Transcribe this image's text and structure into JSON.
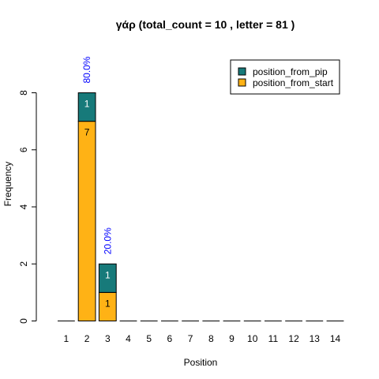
{
  "chart_data": {
    "type": "bar",
    "stacked": true,
    "title": "γάρ  (total_count =  10 , letter = 81 )",
    "xlabel": "Position",
    "ylabel": "Frequency",
    "categories": [
      "1",
      "2",
      "3",
      "4",
      "5",
      "6",
      "7",
      "8",
      "9",
      "10",
      "11",
      "12",
      "13",
      "14"
    ],
    "ylim": [
      0,
      8
    ],
    "yticks": [
      "0",
      "2",
      "4",
      "6",
      "8"
    ],
    "series": [
      {
        "name": "position_from_start",
        "color": "#FFB215",
        "values": [
          0,
          7,
          1,
          0,
          0,
          0,
          0,
          0,
          0,
          0,
          0,
          0,
          0,
          0
        ],
        "labels": [
          "",
          "7",
          "1",
          "",
          "",
          "",
          "",
          "",
          "",
          "",
          "",
          "",
          "",
          ""
        ],
        "label_color": "#000000"
      },
      {
        "name": "position_from_pip",
        "color": "#177A7A",
        "values": [
          0,
          1,
          1,
          0,
          0,
          0,
          0,
          0,
          0,
          0,
          0,
          0,
          0,
          0
        ],
        "labels": [
          "",
          "1",
          "1",
          "",
          "",
          "",
          "",
          "",
          "",
          "",
          "",
          "",
          "",
          ""
        ],
        "label_color": "#ffffff"
      }
    ],
    "percent_labels": [
      "",
      "80.0%",
      "20.0%",
      "",
      "",
      "",
      "",
      "",
      "",
      "",
      "",
      "",
      "",
      ""
    ],
    "percent_color": "#0000FF",
    "legend": {
      "position": "top-right",
      "entries": [
        "position_from_pip",
        "position_from_start"
      ]
    },
    "grid": false
  }
}
